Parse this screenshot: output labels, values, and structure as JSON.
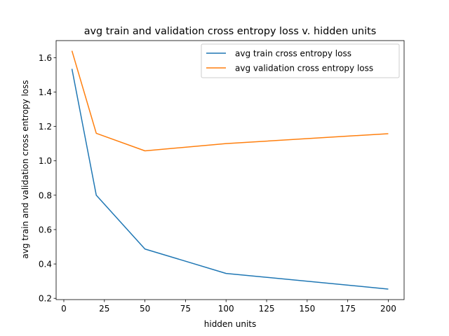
{
  "chart_data": {
    "type": "line",
    "title": "avg train and validation cross entropy loss v. hidden units",
    "xlabel": "hidden units",
    "ylabel": "avg train and validation cross entropy loss",
    "x": [
      5,
      20,
      50,
      100,
      200
    ],
    "series": [
      {
        "name": "avg train cross entropy loss",
        "color": "#1f77b4",
        "values": [
          1.535,
          0.8,
          0.487,
          0.345,
          0.254
        ]
      },
      {
        "name": "avg validation cross entropy loss",
        "color": "#ff7f0e",
        "values": [
          1.64,
          1.16,
          1.058,
          1.1,
          1.158
        ]
      }
    ],
    "xlim": [
      -4.75,
      209.75
    ],
    "ylim": [
      0.1927,
      1.6993
    ],
    "xticks": [
      0,
      25,
      50,
      75,
      100,
      125,
      150,
      175,
      200
    ],
    "xtick_labels": [
      "0",
      "25",
      "50",
      "75",
      "100",
      "125",
      "150",
      "175",
      "200"
    ],
    "yticks": [
      0.2,
      0.4,
      0.6,
      0.8,
      1.0,
      1.2,
      1.4,
      1.6
    ],
    "ytick_labels": [
      "0.2",
      "0.4",
      "0.6",
      "0.8",
      "1.0",
      "1.2",
      "1.4",
      "1.6"
    ],
    "grid": false,
    "legend_position": "top-right"
  }
}
